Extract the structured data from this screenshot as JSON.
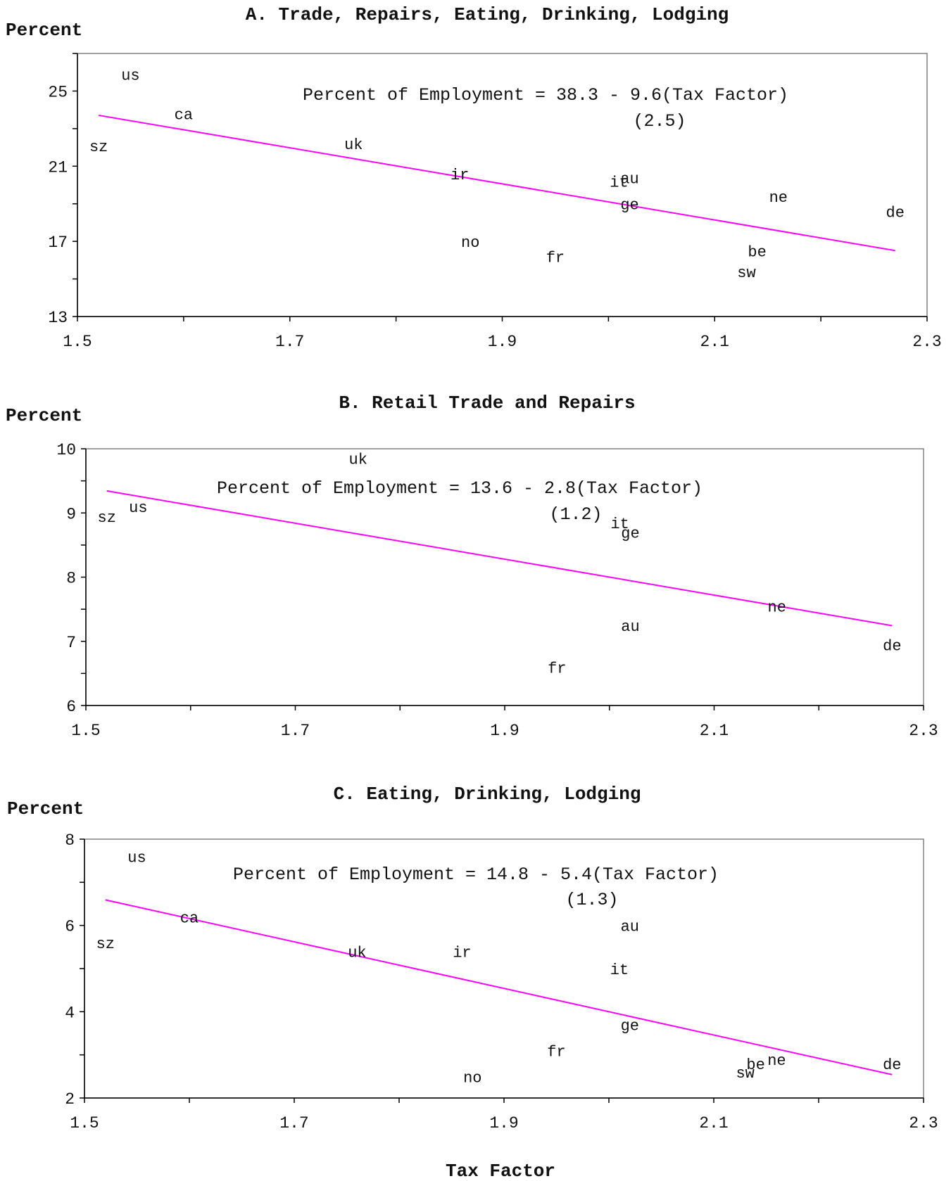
{
  "figure": {
    "xlabel": "Tax Factor",
    "line_color": "#ff00ff"
  },
  "chart_data": [
    {
      "type": "scatter",
      "title": "A. Trade, Repairs, Eating, Drinking, Lodging",
      "ylabel": "Percent",
      "xlabel": "Tax Factor",
      "xlim": [
        1.5,
        2.3
      ],
      "ylim": [
        13,
        27
      ],
      "xticks": [
        "1.5",
        "1.7",
        "1.9",
        "2.1",
        "2.3"
      ],
      "yticks": [
        "13",
        "17",
        "21",
        "25"
      ],
      "equation": "Percent of Employment = 38.3 - 9.6(Tax Factor)",
      "std_error": "(2.5)",
      "fit": {
        "intercept": 38.3,
        "slope": -9.6,
        "x_start": 1.52,
        "x_end": 2.27
      },
      "points": [
        {
          "label": "us",
          "x": 1.55,
          "y": 25.9
        },
        {
          "label": "ca",
          "x": 1.6,
          "y": 23.8
        },
        {
          "label": "sz",
          "x": 1.52,
          "y": 22.1
        },
        {
          "label": "uk",
          "x": 1.76,
          "y": 22.2
        },
        {
          "label": "ir",
          "x": 1.86,
          "y": 20.6
        },
        {
          "label": "au",
          "x": 2.02,
          "y": 20.4
        },
        {
          "label": "it",
          "x": 2.01,
          "y": 20.2
        },
        {
          "label": "ge",
          "x": 2.02,
          "y": 19.0
        },
        {
          "label": "ne",
          "x": 2.16,
          "y": 19.4
        },
        {
          "label": "de",
          "x": 2.27,
          "y": 18.6
        },
        {
          "label": "no",
          "x": 1.87,
          "y": 17.0
        },
        {
          "label": "fr",
          "x": 1.95,
          "y": 16.2
        },
        {
          "label": "be",
          "x": 2.14,
          "y": 16.5
        },
        {
          "label": "sw",
          "x": 2.13,
          "y": 15.4
        }
      ]
    },
    {
      "type": "scatter",
      "title": "B. Retail Trade and Repairs",
      "ylabel": "Percent",
      "xlabel": "Tax Factor",
      "xlim": [
        1.5,
        2.3
      ],
      "ylim": [
        6,
        10
      ],
      "xticks": [
        "1.5",
        "1.7",
        "1.9",
        "2.1",
        "2.3"
      ],
      "yticks": [
        "6",
        "7",
        "8",
        "9",
        "10"
      ],
      "equation": "Percent of Employment = 13.6 - 2.8(Tax Factor)",
      "std_error": "(1.2)",
      "fit": {
        "intercept": 13.6,
        "slope": -2.8,
        "x_start": 1.52,
        "x_end": 2.27
      },
      "points": [
        {
          "label": "uk",
          "x": 1.76,
          "y": 9.85
        },
        {
          "label": "us",
          "x": 1.55,
          "y": 9.1
        },
        {
          "label": "sz",
          "x": 1.52,
          "y": 8.95
        },
        {
          "label": "it",
          "x": 2.01,
          "y": 8.85
        },
        {
          "label": "ge",
          "x": 2.02,
          "y": 8.7
        },
        {
          "label": "ne",
          "x": 2.16,
          "y": 7.55
        },
        {
          "label": "au",
          "x": 2.02,
          "y": 7.25
        },
        {
          "label": "de",
          "x": 2.27,
          "y": 6.95
        },
        {
          "label": "fr",
          "x": 1.95,
          "y": 6.6
        }
      ]
    },
    {
      "type": "scatter",
      "title": "C. Eating, Drinking, Lodging",
      "ylabel": "Percent",
      "xlabel": "Tax Factor",
      "xlim": [
        1.5,
        2.3
      ],
      "ylim": [
        2,
        8
      ],
      "xticks": [
        "1.5",
        "1.7",
        "1.9",
        "2.1",
        "2.3"
      ],
      "yticks": [
        "2",
        "4",
        "6",
        "8"
      ],
      "equation": "Percent of Employment = 14.8 - 5.4(Tax Factor)",
      "std_error": "(1.3)",
      "fit": {
        "intercept": 14.8,
        "slope": -5.4,
        "x_start": 1.52,
        "x_end": 2.27
      },
      "points": [
        {
          "label": "us",
          "x": 1.55,
          "y": 7.6
        },
        {
          "label": "ca",
          "x": 1.6,
          "y": 6.2
        },
        {
          "label": "sz",
          "x": 1.52,
          "y": 5.6
        },
        {
          "label": "au",
          "x": 2.02,
          "y": 6.0
        },
        {
          "label": "uk",
          "x": 1.76,
          "y": 5.4
        },
        {
          "label": "ir",
          "x": 1.86,
          "y": 5.4
        },
        {
          "label": "it",
          "x": 2.01,
          "y": 5.0
        },
        {
          "label": "ge",
          "x": 2.02,
          "y": 3.7
        },
        {
          "label": "fr",
          "x": 1.95,
          "y": 3.1
        },
        {
          "label": "ne",
          "x": 2.16,
          "y": 2.9
        },
        {
          "label": "be",
          "x": 2.14,
          "y": 2.8
        },
        {
          "label": "de",
          "x": 2.27,
          "y": 2.8
        },
        {
          "label": "sw",
          "x": 2.13,
          "y": 2.6
        },
        {
          "label": "no",
          "x": 1.87,
          "y": 2.5
        }
      ]
    }
  ]
}
